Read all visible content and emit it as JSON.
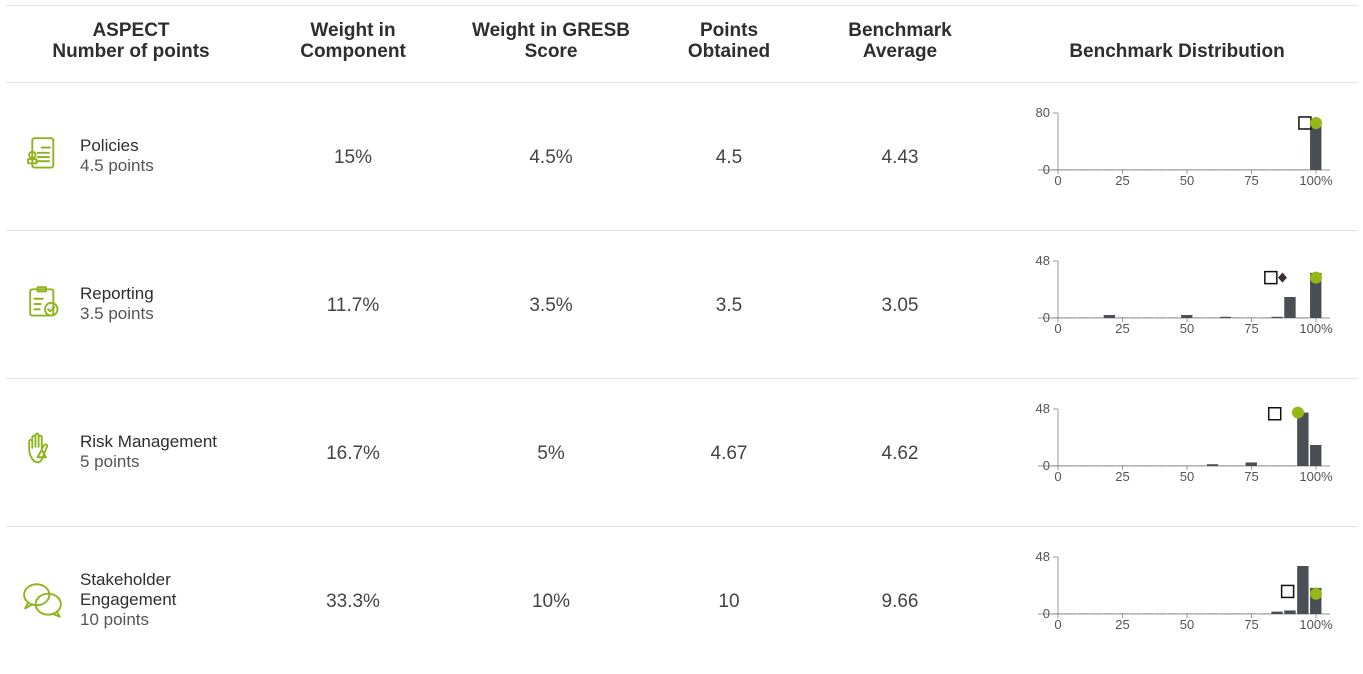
{
  "table": {
    "header": [
      [
        "ASPECT",
        "Number of points"
      ],
      [
        "Weight in",
        "Component"
      ],
      [
        "Weight in GRESB",
        "Score"
      ],
      [
        "Points",
        "Obtained"
      ],
      [
        "Benchmark",
        "Average"
      ],
      [
        "Benchmark Distribution"
      ]
    ],
    "rows": [
      {
        "name": "Policies",
        "points": "4.5 points",
        "weight_component": "15%",
        "weight_score": "4.5%",
        "points_obtained": "4.5",
        "benchmark_average": "4.43",
        "distribution": {
          "ylim": [
            0,
            80
          ],
          "yticks": [
            0,
            80
          ],
          "xlim": [
            0,
            100
          ],
          "xticks": [
            0,
            25,
            50,
            75,
            {
              "value": 100,
              "label": "100%"
            }
          ],
          "bins": [
            -2.5,
            2.5,
            7.5,
            12.5,
            17.5,
            22.5,
            27.5,
            32.5,
            37.5,
            42.5,
            47.5,
            52.5,
            57.5,
            62.5,
            67.5,
            72.5,
            77.5,
            82.5,
            87.5,
            92.5,
            97.5,
            102.5
          ],
          "counts": [
            0.5,
            0.5,
            0.5,
            0.5,
            0.5,
            0.5,
            0.5,
            0.5,
            0.5,
            0.5,
            0.5,
            0.5,
            0.5,
            0.5,
            0.5,
            0.5,
            0.5,
            0.5,
            0.5,
            0.5,
            66
          ],
          "markers": [
            {
              "shape": "square",
              "x": 95.7,
              "y": 66
            },
            {
              "shape": "circle",
              "x": 100,
              "y": 66
            }
          ]
        }
      },
      {
        "name": "Reporting",
        "points": "3.5 points",
        "weight_component": "11.7%",
        "weight_score": "3.5%",
        "points_obtained": "3.5",
        "benchmark_average": "3.05",
        "distribution": {
          "ylim": [
            0,
            48
          ],
          "yticks": [
            0,
            48
          ],
          "xlim": [
            0,
            100
          ],
          "xticks": [
            0,
            25,
            50,
            75,
            {
              "value": 100,
              "label": "100%"
            }
          ],
          "bins": [
            -2.5,
            2.5,
            7.5,
            12.5,
            17.5,
            22.5,
            27.5,
            32.5,
            37.5,
            42.5,
            47.5,
            52.5,
            57.5,
            62.5,
            67.5,
            72.5,
            77.5,
            82.5,
            87.5,
            92.5,
            97.5,
            102.5
          ],
          "counts": [
            0.3,
            0.3,
            0.3,
            0.3,
            2.5,
            0.3,
            0.3,
            0.3,
            0.3,
            0.3,
            2.5,
            0.3,
            0.3,
            1,
            0.3,
            0.3,
            0.3,
            1,
            17.7,
            0.3,
            38
          ],
          "markers": [
            {
              "shape": "square",
              "x": 82.5,
              "y": 34
            },
            {
              "shape": "diamond",
              "x": 87,
              "y": 34
            },
            {
              "shape": "circle",
              "x": 100,
              "y": 34
            }
          ]
        }
      },
      {
        "name": "Risk Management",
        "points": "5 points",
        "weight_component": "16.7%",
        "weight_score": "5%",
        "points_obtained": "4.67",
        "benchmark_average": "4.62",
        "distribution": {
          "ylim": [
            0,
            48
          ],
          "yticks": [
            0,
            48
          ],
          "xlim": [
            0,
            100
          ],
          "xticks": [
            0,
            25,
            50,
            75,
            {
              "value": 100,
              "label": "100%"
            }
          ],
          "bins": [
            -2.5,
            2.5,
            7.5,
            12.5,
            17.5,
            22.5,
            27.5,
            32.5,
            37.5,
            42.5,
            47.5,
            52.5,
            57.5,
            62.5,
            67.5,
            72.5,
            77.5,
            82.5,
            87.5,
            92.5,
            97.5,
            102.5
          ],
          "counts": [
            0.3,
            0.3,
            0.3,
            0.3,
            0.3,
            0.3,
            0.3,
            0.3,
            0.3,
            0.3,
            0.3,
            0.3,
            1.5,
            0.3,
            0.3,
            3,
            0.3,
            0.3,
            0.3,
            45,
            17.7
          ],
          "markers": [
            {
              "shape": "square",
              "x": 84,
              "y": 44
            },
            {
              "shape": "circle",
              "x": 93,
              "y": 45
            }
          ]
        }
      },
      {
        "name": "Stakeholder Engagement",
        "points": "10 points",
        "weight_component": "33.3%",
        "weight_score": "10%",
        "points_obtained": "10",
        "benchmark_average": "9.66",
        "distribution": {
          "ylim": [
            0,
            48
          ],
          "yticks": [
            0,
            48
          ],
          "xlim": [
            0,
            100
          ],
          "xticks": [
            0,
            25,
            50,
            75,
            {
              "value": 100,
              "label": "100%"
            }
          ],
          "bins": [
            -2.5,
            2.5,
            7.5,
            12.5,
            17.5,
            22.5,
            27.5,
            32.5,
            37.5,
            42.5,
            47.5,
            52.5,
            57.5,
            62.5,
            67.5,
            72.5,
            77.5,
            82.5,
            87.5,
            92.5,
            97.5,
            102.5
          ],
          "counts": [
            0.3,
            0.3,
            0.3,
            0.3,
            0.3,
            0.3,
            0.3,
            0.3,
            0.3,
            0.3,
            0.3,
            0.3,
            0.3,
            0.3,
            0.3,
            0.3,
            0.3,
            2,
            3,
            40.4,
            22
          ],
          "markers": [
            {
              "shape": "square",
              "x": 89,
              "y": 19
            },
            {
              "shape": "circle",
              "x": 100,
              "y": 17
            }
          ]
        }
      }
    ]
  }
}
